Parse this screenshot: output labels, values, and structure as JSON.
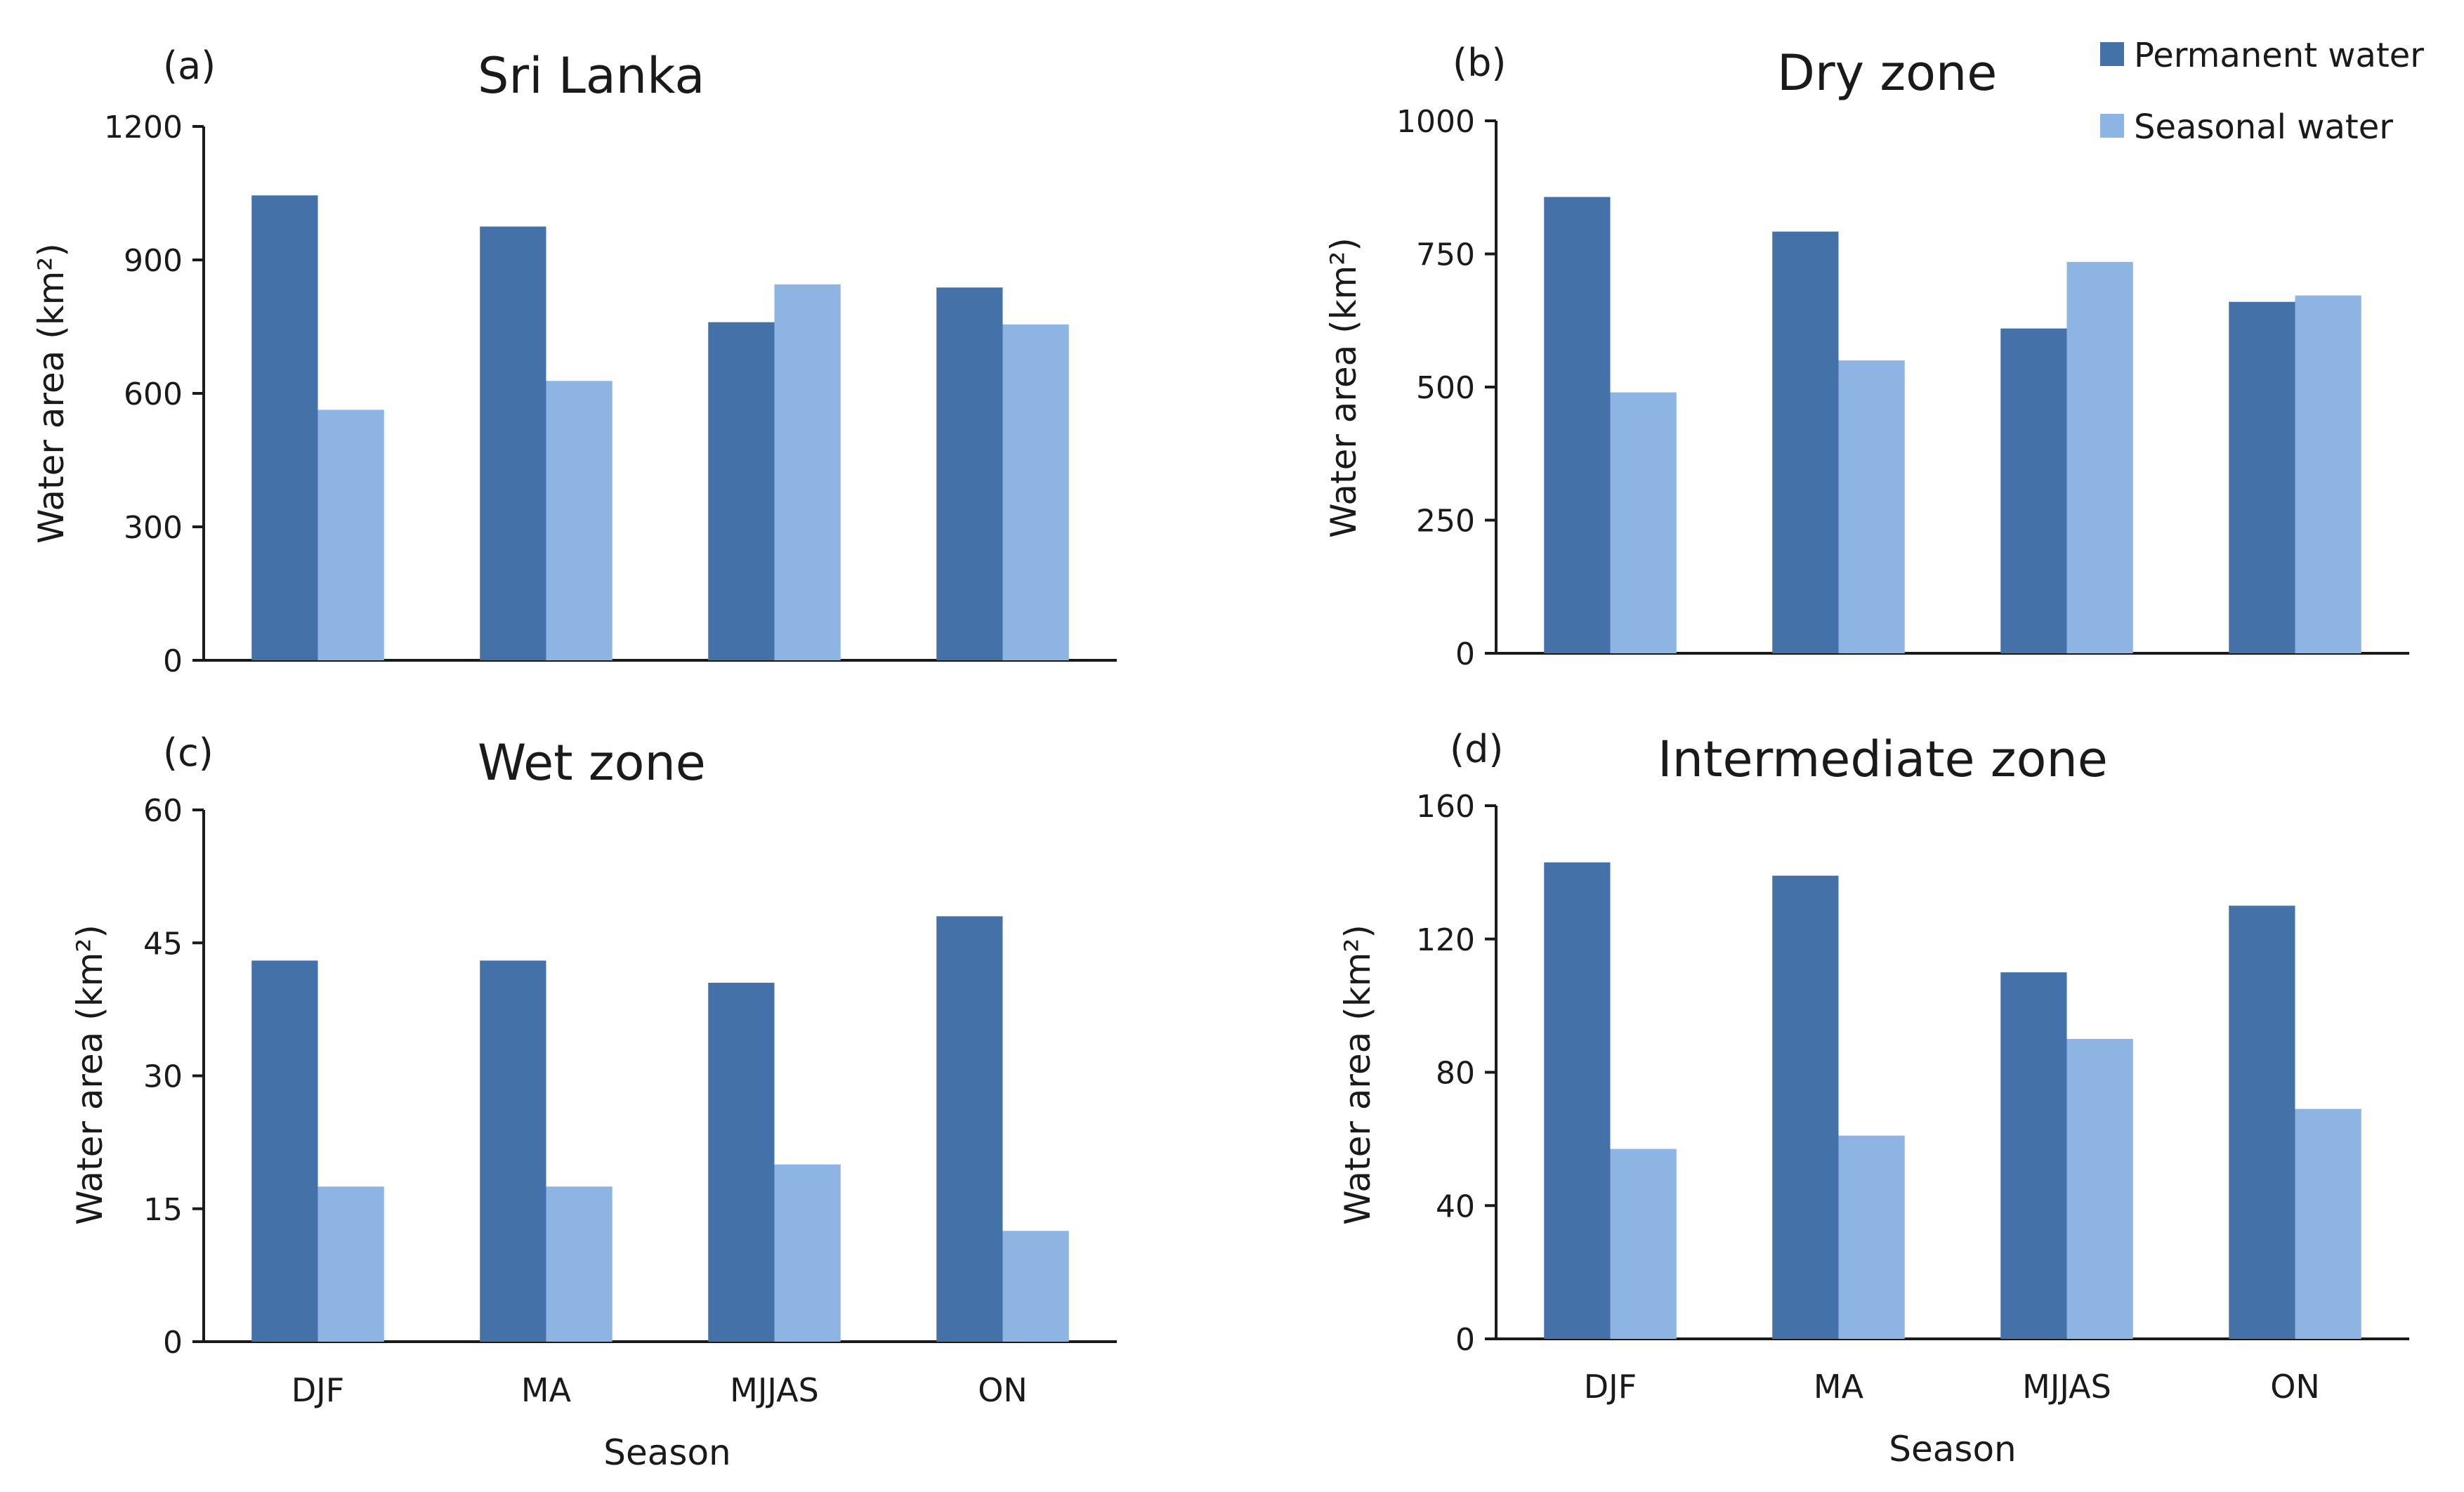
{
  "colors": {
    "permanent": "#4472a8",
    "seasonal": "#8eb4e3"
  },
  "legend": [
    {
      "label": "Permanent water",
      "color": "#4472a8"
    },
    {
      "label": "Seasonal water",
      "color": "#8eb4e3"
    }
  ],
  "chart_data": [
    {
      "type": "bar",
      "panel": "(a)",
      "title": "Sri Lanka",
      "xlabel": "",
      "ylabel": "Water area (km²)",
      "ylim": [
        0,
        1200
      ],
      "yticks": [
        0,
        300,
        600,
        900,
        1200
      ],
      "categories": [
        "DJF",
        "MA",
        "MJJAS",
        "ON"
      ],
      "show_categories": false,
      "series": [
        {
          "name": "Permanent water",
          "values": [
            1045,
            975,
            760,
            838
          ]
        },
        {
          "name": "Seasonal water",
          "values": [
            563,
            628,
            845,
            755
          ]
        }
      ]
    },
    {
      "type": "bar",
      "panel": "(b)",
      "title": "Dry zone",
      "xlabel": "",
      "ylabel": "Water area (km²)",
      "ylim": [
        0,
        1000
      ],
      "yticks": [
        0,
        250,
        500,
        750,
        1000
      ],
      "categories": [
        "DJF",
        "MA",
        "MJJAS",
        "ON"
      ],
      "show_categories": false,
      "series": [
        {
          "name": "Permanent water",
          "values": [
            857,
            792,
            610,
            660
          ]
        },
        {
          "name": "Seasonal water",
          "values": [
            490,
            550,
            735,
            672
          ]
        }
      ]
    },
    {
      "type": "bar",
      "panel": "(c)",
      "title": "Wet zone",
      "xlabel": "Season",
      "ylabel": "Water area (km²)",
      "ylim": [
        0,
        60
      ],
      "yticks": [
        0,
        15,
        30,
        45,
        60
      ],
      "categories": [
        "DJF",
        "MA",
        "MJJAS",
        "ON"
      ],
      "show_categories": true,
      "series": [
        {
          "name": "Permanent water",
          "values": [
            43,
            43,
            40.5,
            48
          ]
        },
        {
          "name": "Seasonal water",
          "values": [
            17.5,
            17.5,
            20,
            12.5
          ]
        }
      ]
    },
    {
      "type": "bar",
      "panel": "(d)",
      "title": "Intermediate zone",
      "xlabel": "Season",
      "ylabel": "Water area (km²)",
      "ylim": [
        0,
        160
      ],
      "yticks": [
        0,
        40,
        80,
        120,
        160
      ],
      "categories": [
        "DJF",
        "MA",
        "MJJAS",
        "ON"
      ],
      "show_categories": true,
      "series": [
        {
          "name": "Permanent water",
          "values": [
            143,
            139,
            110,
            130
          ]
        },
        {
          "name": "Seasonal water",
          "values": [
            57,
            61,
            90,
            69
          ]
        }
      ]
    }
  ]
}
